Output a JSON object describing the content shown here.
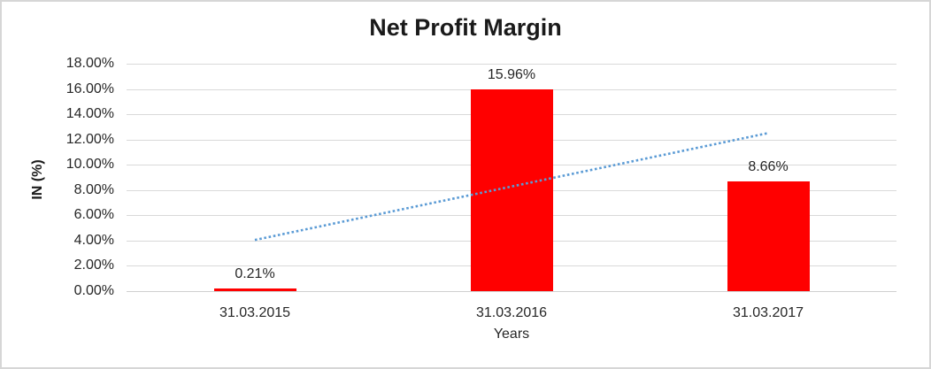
{
  "chart_data": {
    "type": "bar",
    "title": "Net Profit Margin",
    "xlabel": "Years",
    "ylabel": "IN (%)",
    "categories": [
      "31.03.2015",
      "31.03.2016",
      "31.03.2017"
    ],
    "values": [
      0.21,
      15.96,
      8.66
    ],
    "data_labels": [
      "0.21%",
      "15.96%",
      "8.66%"
    ],
    "ylim": [
      0,
      18
    ],
    "ytick_step": 2,
    "ytick_labels": [
      "0.00%",
      "2.00%",
      "4.00%",
      "6.00%",
      "8.00%",
      "10.00%",
      "12.00%",
      "14.00%",
      "16.00%",
      "18.00%"
    ],
    "grid": "horizontal",
    "legend": "none",
    "bar_color": "#ff0000",
    "gridline_color": "#d9d9d9",
    "text_color": "#262626",
    "trendline": {
      "type": "linear",
      "style": "dotted",
      "color": "#5b9bd5",
      "start_value": 4.05,
      "end_value": 12.51
    }
  }
}
